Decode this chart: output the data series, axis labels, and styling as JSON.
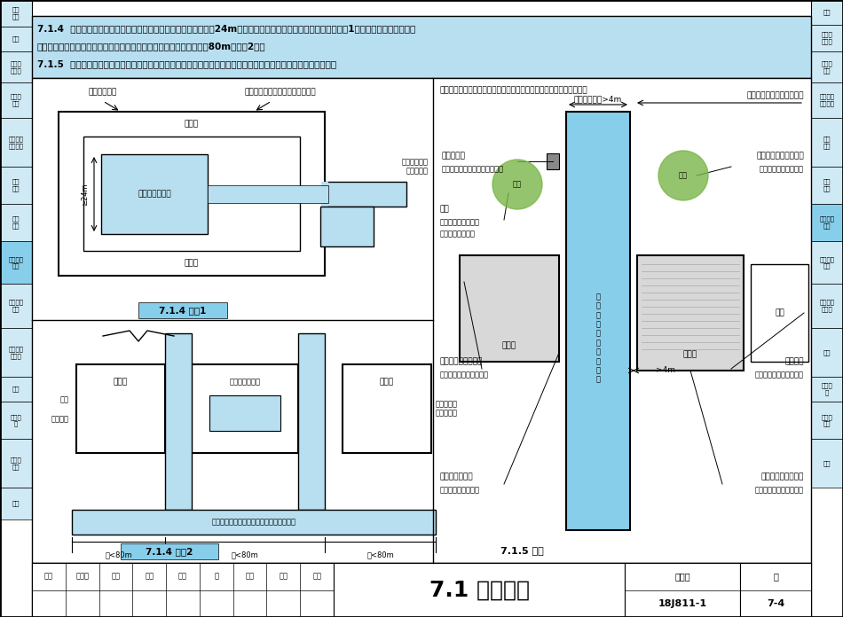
{
  "title": "7.1 消防车道",
  "page_num": "7-4",
  "atlas_num": "18J811-1",
  "bg_color": "#ffffff",
  "light_blue": "#b8dff0",
  "road_blue": "#87ceeb",
  "header_bg": "#b8dff0",
  "sidebar_bg": "#d0eaf5",
  "sidebar_highlight": "#87ceeb",
  "diagram2_label_bg": "#87ceeb",
  "note_text": "【注释】图示为不得影响消防车通行或影响人员安全疏散的设施举例。",
  "header_lines": [
    "7.1.4  有封闭内院或天井的建筑物，当内院或天井的短边长度大于24m时，宜设置进入内院或天井的消防车道【图示1】；当该建筑物沿街时，",
    "应设置连通街道和内院的人行通道（可利用楼梯间），其间距不宜大于80m【图示2】。",
    "7.1.5  在穿过建筑物或进入建筑物内院的消防车道两侧，不应设置影响消防车通行或人员安全疏散的设施。【图示】"
  ]
}
